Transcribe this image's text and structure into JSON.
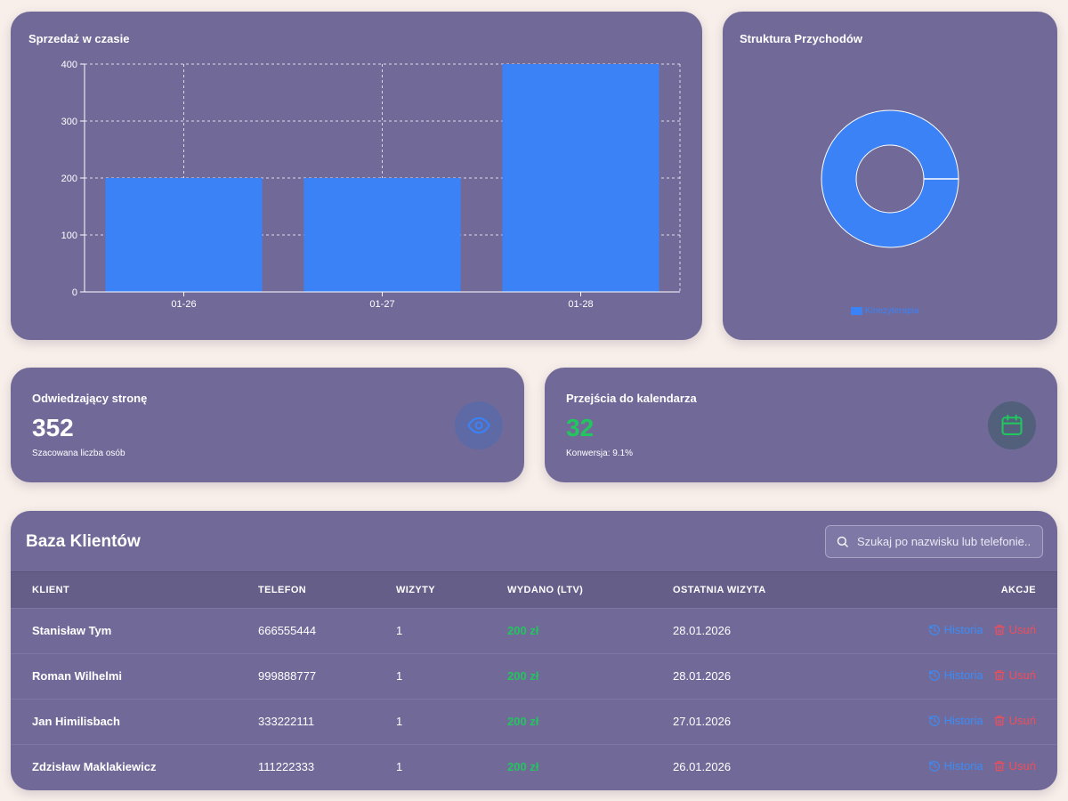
{
  "sales": {
    "title": "Sprzedaż w czasie"
  },
  "revenue": {
    "title": "Struktura Przychodów",
    "legend_label": "Kinezyterapia"
  },
  "chart_data": [
    {
      "type": "bar",
      "title": "Sprzedaż w czasie",
      "categories": [
        "01-26",
        "01-27",
        "01-28"
      ],
      "values": [
        200,
        200,
        400
      ],
      "ylim": [
        0,
        400
      ],
      "yticks": [
        0,
        100,
        200,
        300,
        400
      ],
      "grid": true,
      "xlabel": "",
      "ylabel": "",
      "color": "#3b82f6"
    },
    {
      "type": "pie",
      "title": "Struktura Przychodów",
      "donut": true,
      "labels": [
        "Kinezyterapia"
      ],
      "values": [
        100
      ],
      "legend": "bottom",
      "color": "#3b82f6"
    }
  ],
  "stats": {
    "visitors": {
      "label": "Odwiedzający stronę",
      "value": "352",
      "sub": "Szacowana liczba osób",
      "icon": "eye-icon"
    },
    "calendar": {
      "label": "Przejścia do kalendarza",
      "value": "32",
      "sub": "Konwersja: 9.1%",
      "icon": "calendar-icon"
    }
  },
  "clients": {
    "title": "Baza Klientów",
    "search_placeholder": "Szukaj po nazwisku lub telefonie...",
    "columns": [
      "KLIENT",
      "TELEFON",
      "WIZYTY",
      "WYDANO (LTV)",
      "OSTATNIA WIZYTA",
      "AKCJE"
    ],
    "history_label": "Historia",
    "delete_label": "Usuń",
    "rows": [
      {
        "name": "Stanisław Tym",
        "phone": "666555444",
        "visits": "1",
        "spent": "200 zł",
        "last": "28.01.2026"
      },
      {
        "name": "Roman Wilhelmi",
        "phone": "999888777",
        "visits": "1",
        "spent": "200 zł",
        "last": "28.01.2026"
      },
      {
        "name": "Jan Himilisbach",
        "phone": "333222111",
        "visits": "1",
        "spent": "200 zł",
        "last": "27.01.2026"
      },
      {
        "name": "Zdzisław Maklakiewicz",
        "phone": "111222333",
        "visits": "1",
        "spent": "200 zł",
        "last": "26.01.2026"
      }
    ]
  },
  "colors": {
    "accent": "#3b82f6",
    "positive": "#22c55e",
    "danger": "#ef4d5a",
    "card": "#716a99"
  }
}
